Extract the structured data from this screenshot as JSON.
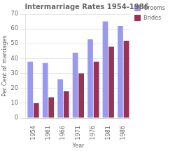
{
  "chart_data": {
    "type": "bar",
    "title": "Intermarriage Rates 1954-1986",
    "xlabel": "Year",
    "ylabel": "Per Cent of marriages",
    "categories": [
      "1954",
      "1961",
      "1966",
      "1971",
      "1976",
      "1981",
      "1986"
    ],
    "series": [
      {
        "name": "Grooms",
        "color": "#9999ee",
        "values": [
          38,
          37,
          26,
          44,
          53,
          65,
          62
        ]
      },
      {
        "name": "Brides",
        "color": "#993355",
        "values": [
          10,
          14,
          18,
          30,
          38,
          48,
          52
        ]
      }
    ],
    "ylim": [
      0,
      70
    ],
    "yticks": [
      0,
      10,
      20,
      30,
      40,
      50,
      60,
      70
    ],
    "grid": true,
    "legend": "right"
  }
}
